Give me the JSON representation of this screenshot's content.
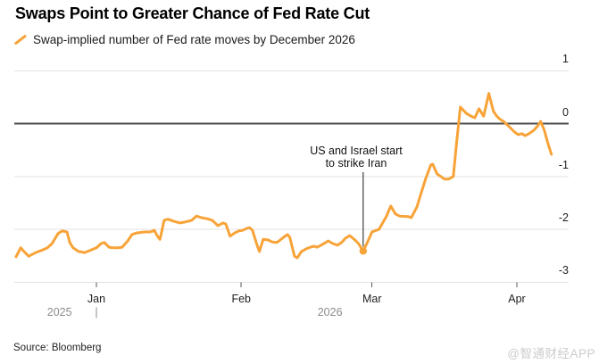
{
  "header": {
    "title": "Swaps Point to Greater Chance of Fed Rate Cut",
    "legend_label": "Swap-implied number of Fed rate moves by December 2026"
  },
  "annotation": {
    "line1": "US and Israel start",
    "line2": "to strike Iran"
  },
  "footer": {
    "source": "Source: Bloomberg",
    "watermark": "@智通财经APP"
  },
  "colors": {
    "line": "#F7A338",
    "marker_dot": "#F7A338",
    "zero_line": "#4d4d4d",
    "gridline": "#e3e3e3",
    "tick": "#5a5a5a",
    "annotation_line": "#3f3f3f",
    "year_label": "#8c8c8c"
  },
  "chart_data": {
    "type": "line",
    "title": "Swaps Point to Greater Chance of Fed Rate Cut",
    "xlabel": "",
    "ylabel": "Swap-implied number of Fed rate moves by December 2026",
    "grid": true,
    "legend_position": "top-left",
    "x_unit": "days from Jan 1, 2026 (chart spans mid-Dec 2025 to early Apr 2026)",
    "xlim_days": [
      -17.6,
      101
    ],
    "ylim": [
      -3.3,
      1.4
    ],
    "y_axis": {
      "ticks": [
        {
          "label": "1",
          "value": 1
        },
        {
          "label": "0",
          "value": 0
        },
        {
          "label": "-1",
          "value": -1
        },
        {
          "label": "-2",
          "value": -2
        },
        {
          "label": "-3",
          "value": -3
        }
      ]
    },
    "x_axis": {
      "ticks": [
        {
          "label": "Jan",
          "d": 0
        },
        {
          "label": "Feb",
          "d": 31
        },
        {
          "label": "Mar",
          "d": 59
        },
        {
          "label": "Apr",
          "d": 90
        }
      ],
      "year_labels": [
        {
          "label": "2025",
          "d": -7.9
        },
        {
          "label": "2026",
          "d": 50.0
        }
      ],
      "year_separator": "|",
      "year_separator_d": 0
    },
    "event_annotation": {
      "text": "US and Israel start to strike Iran",
      "d": 57.1,
      "value": -2.41,
      "text_center_d": 55.6
    },
    "series": [
      {
        "name": "Swap-implied number of Fed rate moves by December 2026",
        "points": [
          [
            -17.2,
            -2.52
          ],
          [
            -16.2,
            -2.35
          ],
          [
            -15.5,
            -2.42
          ],
          [
            -14.5,
            -2.51
          ],
          [
            -13.0,
            -2.44
          ],
          [
            -11.5,
            -2.39
          ],
          [
            -10.5,
            -2.35
          ],
          [
            -9.5,
            -2.27
          ],
          [
            -8.2,
            -2.08
          ],
          [
            -7.3,
            -2.03
          ],
          [
            -6.3,
            -2.05
          ],
          [
            -5.7,
            -2.25
          ],
          [
            -5.0,
            -2.35
          ],
          [
            -3.8,
            -2.42
          ],
          [
            -2.5,
            -2.44
          ],
          [
            -1.1,
            -2.39
          ],
          [
            0,
            -2.35
          ],
          [
            1.0,
            -2.27
          ],
          [
            1.7,
            -2.25
          ],
          [
            2.7,
            -2.34
          ],
          [
            3.6,
            -2.35
          ],
          [
            4.6,
            -2.35
          ],
          [
            5.5,
            -2.34
          ],
          [
            6.7,
            -2.22
          ],
          [
            7.6,
            -2.1
          ],
          [
            8.6,
            -2.07
          ],
          [
            10.3,
            -2.05
          ],
          [
            11.5,
            -2.05
          ],
          [
            12.4,
            -2.02
          ],
          [
            13.0,
            -2.12
          ],
          [
            13.6,
            -2.19
          ],
          [
            14.5,
            -1.83
          ],
          [
            15.3,
            -1.81
          ],
          [
            16.6,
            -1.85
          ],
          [
            17.9,
            -1.88
          ],
          [
            19.1,
            -1.86
          ],
          [
            20.4,
            -1.83
          ],
          [
            21.4,
            -1.75
          ],
          [
            22.5,
            -1.78
          ],
          [
            23.7,
            -1.8
          ],
          [
            24.8,
            -1.83
          ],
          [
            26.0,
            -1.93
          ],
          [
            27.1,
            -1.88
          ],
          [
            27.7,
            -1.9
          ],
          [
            28.6,
            -2.13
          ],
          [
            29.6,
            -2.07
          ],
          [
            30.5,
            -2.03
          ],
          [
            31.3,
            -2.02
          ],
          [
            32.3,
            -1.98
          ],
          [
            32.8,
            -1.97
          ],
          [
            33.4,
            -2.02
          ],
          [
            34.4,
            -2.3
          ],
          [
            34.9,
            -2.42
          ],
          [
            35.7,
            -2.19
          ],
          [
            36.7,
            -2.2
          ],
          [
            37.6,
            -2.24
          ],
          [
            38.6,
            -2.25
          ],
          [
            39.1,
            -2.22
          ],
          [
            40.1,
            -2.15
          ],
          [
            40.9,
            -2.1
          ],
          [
            41.4,
            -2.15
          ],
          [
            42.4,
            -2.51
          ],
          [
            43.0,
            -2.54
          ],
          [
            43.9,
            -2.42
          ],
          [
            44.9,
            -2.37
          ],
          [
            45.8,
            -2.34
          ],
          [
            46.6,
            -2.32
          ],
          [
            47.2,
            -2.34
          ],
          [
            48.1,
            -2.3
          ],
          [
            49.1,
            -2.25
          ],
          [
            49.6,
            -2.22
          ],
          [
            50.6,
            -2.27
          ],
          [
            51.6,
            -2.3
          ],
          [
            52.5,
            -2.25
          ],
          [
            53.3,
            -2.17
          ],
          [
            54.2,
            -2.12
          ],
          [
            55.2,
            -2.19
          ],
          [
            56.1,
            -2.27
          ],
          [
            57.1,
            -2.41
          ],
          [
            58.0,
            -2.25
          ],
          [
            59.0,
            -2.05
          ],
          [
            60.5,
            -2.0
          ],
          [
            62.1,
            -1.75
          ],
          [
            63.0,
            -1.56
          ],
          [
            64.0,
            -1.71
          ],
          [
            64.9,
            -1.75
          ],
          [
            66.8,
            -1.76
          ],
          [
            67.4,
            -1.78
          ],
          [
            68.6,
            -1.58
          ],
          [
            69.5,
            -1.32
          ],
          [
            70.5,
            -1.04
          ],
          [
            71.6,
            -0.78
          ],
          [
            72.0,
            -0.77
          ],
          [
            72.9,
            -0.95
          ],
          [
            73.7,
            -1.0
          ],
          [
            74.5,
            -1.05
          ],
          [
            75.4,
            -1.05
          ],
          [
            76.4,
            -1.0
          ],
          [
            77.1,
            -0.36
          ],
          [
            77.9,
            0.31
          ],
          [
            79.2,
            0.19
          ],
          [
            80.2,
            0.14
          ],
          [
            81.0,
            0.11
          ],
          [
            81.9,
            0.28
          ],
          [
            82.9,
            0.14
          ],
          [
            84.0,
            0.57
          ],
          [
            85.0,
            0.23
          ],
          [
            85.7,
            0.14
          ],
          [
            86.3,
            0.09
          ],
          [
            87.3,
            0.03
          ],
          [
            88.6,
            -0.08
          ],
          [
            89.5,
            -0.16
          ],
          [
            90.3,
            -0.21
          ],
          [
            91.1,
            -0.19
          ],
          [
            91.8,
            -0.23
          ],
          [
            92.6,
            -0.19
          ],
          [
            93.6,
            -0.13
          ],
          [
            94.5,
            -0.04
          ],
          [
            95.1,
            0.04
          ],
          [
            95.9,
            -0.13
          ],
          [
            96.6,
            -0.36
          ],
          [
            97.4,
            -0.58
          ]
        ]
      }
    ]
  }
}
